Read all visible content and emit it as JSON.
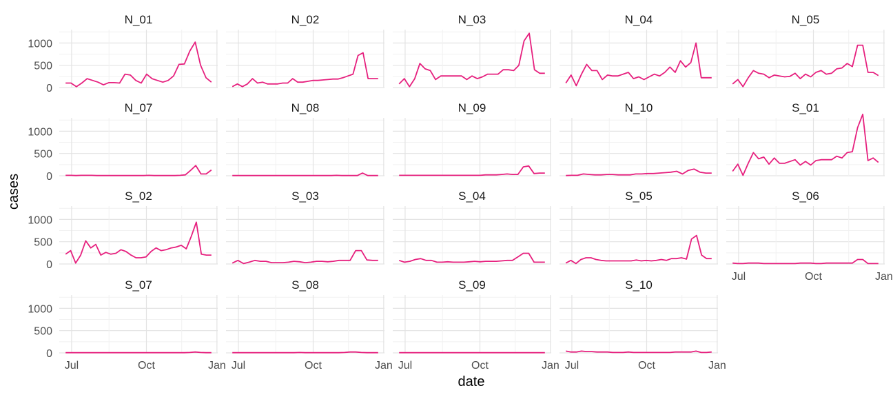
{
  "chart_data": {
    "type": "line",
    "xlabel": "date",
    "ylabel": "cases",
    "ylim": [
      0,
      1300
    ],
    "y_ticks": [
      0,
      500,
      1000
    ],
    "y_tick_labels": [
      "0",
      "500",
      "1000"
    ],
    "x_tick_labels": [
      "Jul",
      "Oct",
      "Jan"
    ],
    "line_color": "#e6207e",
    "grid": true,
    "panels": [
      {
        "name": "N_01",
        "values": [
          100,
          100,
          20,
          100,
          200,
          160,
          120,
          60,
          110,
          110,
          100,
          300,
          280,
          160,
          100,
          300,
          200,
          160,
          120,
          160,
          260,
          520,
          530,
          820,
          1020,
          500,
          220,
          120
        ]
      },
      {
        "name": "N_02",
        "values": [
          20,
          80,
          20,
          80,
          200,
          100,
          120,
          80,
          80,
          80,
          100,
          100,
          200,
          120,
          120,
          140,
          160,
          160,
          170,
          180,
          190,
          190,
          220,
          260,
          300,
          720,
          780,
          200,
          200,
          200
        ]
      },
      {
        "name": "N_03",
        "values": [
          80,
          200,
          20,
          200,
          540,
          420,
          380,
          180,
          260,
          260,
          260,
          260,
          260,
          180,
          260,
          200,
          240,
          300,
          300,
          300,
          400,
          400,
          380,
          500,
          1050,
          1220,
          400,
          320,
          320
        ]
      },
      {
        "name": "N_04",
        "values": [
          100,
          280,
          40,
          300,
          520,
          380,
          380,
          180,
          280,
          260,
          260,
          300,
          340,
          200,
          240,
          180,
          240,
          300,
          260,
          340,
          460,
          340,
          600,
          460,
          560,
          1000,
          220,
          220,
          220
        ]
      },
      {
        "name": "N_05",
        "values": [
          80,
          180,
          20,
          220,
          380,
          320,
          300,
          220,
          280,
          260,
          240,
          250,
          320,
          200,
          300,
          240,
          340,
          380,
          300,
          320,
          420,
          440,
          540,
          470,
          950,
          950,
          340,
          340,
          270
        ]
      },
      {
        "name": "N_07",
        "values": [
          10,
          10,
          5,
          10,
          10,
          10,
          5,
          5,
          5,
          5,
          5,
          5,
          5,
          5,
          5,
          5,
          10,
          5,
          5,
          5,
          5,
          5,
          10,
          20,
          120,
          230,
          40,
          40,
          130
        ]
      },
      {
        "name": "N_08",
        "values": [
          5,
          5,
          5,
          5,
          5,
          5,
          5,
          5,
          5,
          5,
          5,
          5,
          5,
          5,
          5,
          5,
          5,
          5,
          5,
          5,
          10,
          5,
          5,
          5,
          5,
          60,
          5,
          5,
          5
        ]
      },
      {
        "name": "N_09",
        "values": [
          10,
          10,
          10,
          10,
          10,
          10,
          10,
          10,
          10,
          10,
          10,
          10,
          10,
          10,
          10,
          10,
          20,
          20,
          20,
          30,
          40,
          30,
          30,
          200,
          220,
          50,
          60,
          60
        ]
      },
      {
        "name": "N_10",
        "values": [
          5,
          10,
          10,
          40,
          30,
          20,
          20,
          30,
          30,
          20,
          20,
          20,
          40,
          40,
          50,
          50,
          60,
          70,
          80,
          100,
          40,
          120,
          150,
          80,
          60,
          60
        ]
      },
      {
        "name": "S_01",
        "values": [
          100,
          260,
          10,
          280,
          520,
          380,
          420,
          260,
          400,
          280,
          280,
          320,
          360,
          240,
          320,
          240,
          340,
          360,
          360,
          360,
          440,
          400,
          520,
          540,
          1080,
          1380,
          340,
          400,
          300
        ]
      },
      {
        "name": "S_02",
        "values": [
          220,
          300,
          20,
          200,
          520,
          360,
          440,
          200,
          260,
          220,
          240,
          320,
          280,
          200,
          140,
          140,
          160,
          280,
          360,
          300,
          320,
          360,
          380,
          420,
          340,
          620,
          940,
          220,
          200,
          200
        ]
      },
      {
        "name": "S_03",
        "values": [
          20,
          80,
          10,
          40,
          80,
          60,
          60,
          30,
          30,
          30,
          40,
          60,
          50,
          30,
          40,
          60,
          60,
          50,
          60,
          80,
          80,
          80,
          300,
          300,
          90,
          80,
          80
        ]
      },
      {
        "name": "S_04",
        "values": [
          80,
          40,
          60,
          100,
          120,
          80,
          80,
          40,
          40,
          50,
          40,
          40,
          40,
          50,
          60,
          50,
          60,
          60,
          60,
          70,
          80,
          80,
          160,
          240,
          240,
          40,
          40,
          40
        ]
      },
      {
        "name": "S_05",
        "values": [
          20,
          80,
          10,
          100,
          140,
          140,
          100,
          80,
          70,
          70,
          70,
          70,
          70,
          70,
          90,
          70,
          80,
          70,
          80,
          100,
          80,
          120,
          120,
          140,
          110,
          560,
          640,
          200,
          120,
          120
        ]
      },
      {
        "name": "S_06",
        "values": [
          20,
          10,
          10,
          20,
          20,
          20,
          10,
          10,
          10,
          10,
          10,
          10,
          10,
          20,
          20,
          20,
          10,
          10,
          20,
          20,
          20,
          20,
          20,
          20,
          100,
          100,
          10,
          10,
          10
        ]
      },
      {
        "name": "S_07",
        "values": [
          5,
          5,
          5,
          5,
          5,
          5,
          5,
          5,
          5,
          5,
          5,
          5,
          5,
          5,
          5,
          5,
          5,
          5,
          5,
          5,
          5,
          5,
          5,
          10,
          20,
          10,
          5,
          5
        ]
      },
      {
        "name": "S_08",
        "values": [
          5,
          5,
          5,
          5,
          5,
          5,
          5,
          5,
          5,
          5,
          5,
          5,
          10,
          5,
          5,
          5,
          5,
          5,
          5,
          5,
          10,
          20,
          20,
          10,
          5,
          5,
          5
        ]
      },
      {
        "name": "S_09",
        "values": [
          5,
          5,
          5,
          5,
          5,
          5,
          5,
          5,
          5,
          5,
          5,
          5,
          5,
          5,
          5,
          5,
          5,
          5,
          5,
          5,
          5,
          5,
          5,
          5,
          5,
          5,
          5,
          5
        ]
      },
      {
        "name": "S_10",
        "values": [
          40,
          20,
          20,
          40,
          30,
          30,
          20,
          20,
          20,
          10,
          10,
          10,
          20,
          10,
          10,
          10,
          10,
          10,
          10,
          10,
          10,
          20,
          20,
          20,
          20,
          40,
          10,
          10,
          20
        ]
      }
    ]
  }
}
